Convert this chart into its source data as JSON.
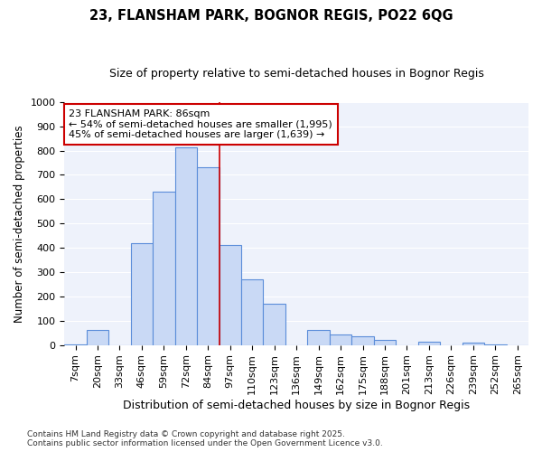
{
  "title": "23, FLANSHAM PARK, BOGNOR REGIS, PO22 6QG",
  "subtitle": "Size of property relative to semi-detached houses in Bognor Regis",
  "xlabel": "Distribution of semi-detached houses by size in Bognor Regis",
  "ylabel": "Number of semi-detached properties",
  "categories": [
    "7sqm",
    "20sqm",
    "33sqm",
    "46sqm",
    "59sqm",
    "72sqm",
    "84sqm",
    "97sqm",
    "110sqm",
    "123sqm",
    "136sqm",
    "149sqm",
    "162sqm",
    "175sqm",
    "188sqm",
    "201sqm",
    "213sqm",
    "226sqm",
    "239sqm",
    "252sqm",
    "265sqm"
  ],
  "values": [
    2,
    62,
    0,
    420,
    630,
    815,
    730,
    410,
    270,
    170,
    0,
    63,
    43,
    35,
    20,
    0,
    15,
    0,
    10,
    2,
    0
  ],
  "bar_color": "#c9d9f5",
  "bar_edge_color": "#5b8dd9",
  "background_color": "#ffffff",
  "plot_bg_color": "#eef2fb",
  "grid_color": "#ffffff",
  "annotation_text": "23 FLANSHAM PARK: 86sqm\n← 54% of semi-detached houses are smaller (1,995)\n45% of semi-detached houses are larger (1,639) →",
  "annotation_box_color": "#ffffff",
  "annotation_box_edge_color": "#cc0000",
  "vline_color": "#cc0000",
  "ylim": [
    0,
    1000
  ],
  "yticks": [
    0,
    100,
    200,
    300,
    400,
    500,
    600,
    700,
    800,
    900,
    1000
  ],
  "footer": "Contains HM Land Registry data © Crown copyright and database right 2025.\nContains public sector information licensed under the Open Government Licence v3.0.",
  "title_fontsize": 10.5,
  "subtitle_fontsize": 9,
  "xlabel_fontsize": 9,
  "ylabel_fontsize": 8.5,
  "tick_fontsize": 8,
  "annotation_fontsize": 8,
  "footer_fontsize": 6.5
}
